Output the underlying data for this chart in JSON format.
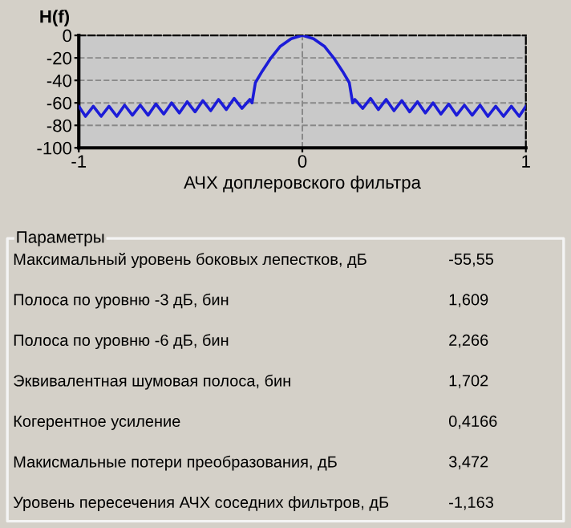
{
  "chart_data": [
    {
      "type": "line",
      "ylabel": "H(f)",
      "xlabel": "АЧХ доплеровского фильтра",
      "xlim": [
        -1,
        1
      ],
      "ylim": [
        -100,
        0
      ],
      "xticks": [
        -1,
        0,
        1
      ],
      "yticks": [
        0,
        -20,
        -40,
        -60,
        -80,
        -100
      ],
      "grid": true,
      "marker": "none",
      "line_style": "solid",
      "series": [
        {
          "color": "#1c1cd8",
          "x": [
            -1,
            -0.97,
            -0.935,
            -0.9,
            -0.865,
            -0.83,
            -0.795,
            -0.76,
            -0.725,
            -0.69,
            -0.655,
            -0.62,
            -0.585,
            -0.55,
            -0.515,
            -0.48,
            -0.445,
            -0.41,
            -0.375,
            -0.34,
            -0.305,
            -0.27,
            -0.235,
            -0.225,
            -0.21,
            -0.18,
            -0.14,
            -0.1,
            -0.05,
            0,
            0.05,
            0.1,
            0.14,
            0.18,
            0.21,
            0.225,
            0.235,
            0.27,
            0.305,
            0.34,
            0.375,
            0.41,
            0.445,
            0.48,
            0.515,
            0.55,
            0.585,
            0.62,
            0.655,
            0.69,
            0.725,
            0.76,
            0.795,
            0.83,
            0.865,
            0.9,
            0.935,
            0.97,
            1
          ],
          "values": [
            -63,
            -72,
            -63,
            -72,
            -63,
            -72,
            -62,
            -71,
            -62,
            -71,
            -61,
            -70,
            -60,
            -69,
            -59,
            -68,
            -58,
            -67,
            -57,
            -66,
            -56,
            -65,
            -57,
            -60,
            -42,
            -32,
            -20,
            -10,
            -3,
            0,
            -3,
            -10,
            -20,
            -32,
            -42,
            -60,
            -57,
            -65,
            -56,
            -66,
            -57,
            -67,
            -58,
            -68,
            -59,
            -69,
            -60,
            -70,
            -61,
            -71,
            -62,
            -71,
            -62,
            -72,
            -63,
            -72,
            -63,
            -72,
            -63
          ]
        }
      ]
    },
    {
      "type": "other",
      "title": "Параметры",
      "annotations": [
        "Максимальный уровень боковых лепестков, дБ",
        "-55,55",
        "Полоса по уровню -3 дБ, бин",
        "1,609",
        "Полоса по уровню -6 дБ, бин",
        "2,266",
        "Эквивалентная шумовая полоса, бин",
        "1,702",
        "Когерентное усиление",
        "0,4166",
        "Макисмальные потери преобразования, дБ",
        "3,472",
        "Уровень пересечения АЧХ соседних фильтров, дБ",
        "-1,163"
      ]
    }
  ]
}
